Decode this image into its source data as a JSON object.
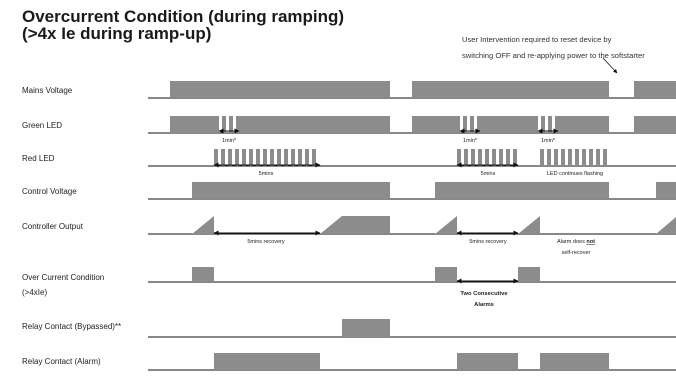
{
  "title_line1": "Overcurrent Condition (during ramping)",
  "title_line2": "(>4x Ie during ramp-up)",
  "note_line1": "User Intervention required to reset device by",
  "note_line2": "switching OFF and re-applying power to the softstarter",
  "rows": [
    {
      "label": "Mains Voltage"
    },
    {
      "label": "Green LED"
    },
    {
      "label": "Red LED"
    },
    {
      "label": "Control Voltage"
    },
    {
      "label": "Controller Output"
    },
    {
      "label_line1": "Over Current Condition",
      "label_line2": "(>4xIe)"
    },
    {
      "label": "Relay Contact (Bypassed)**"
    },
    {
      "label": "Relay Contact (Alarm)"
    }
  ],
  "annotations": {
    "green_1min_a": "1min*",
    "green_1min_b": "1min*",
    "green_1min_c": "1min*",
    "red_5mins_a": "5mins",
    "red_5mins_b": "5mins",
    "red_flashing": "LED continues flashing",
    "ctrl_recovery_a": "5mins recovery",
    "ctrl_recovery_b": "5mins recovery",
    "alarm_l1_pre": "Alarm does ",
    "alarm_l1_emph": "not",
    "alarm_l2": "self-recover",
    "two_consec_l1": "Two Consecutive",
    "two_consec_l2": "Alarms"
  },
  "colors": {
    "signal": "#8c8c8c",
    "line": "#111111",
    "text": "#222222"
  }
}
